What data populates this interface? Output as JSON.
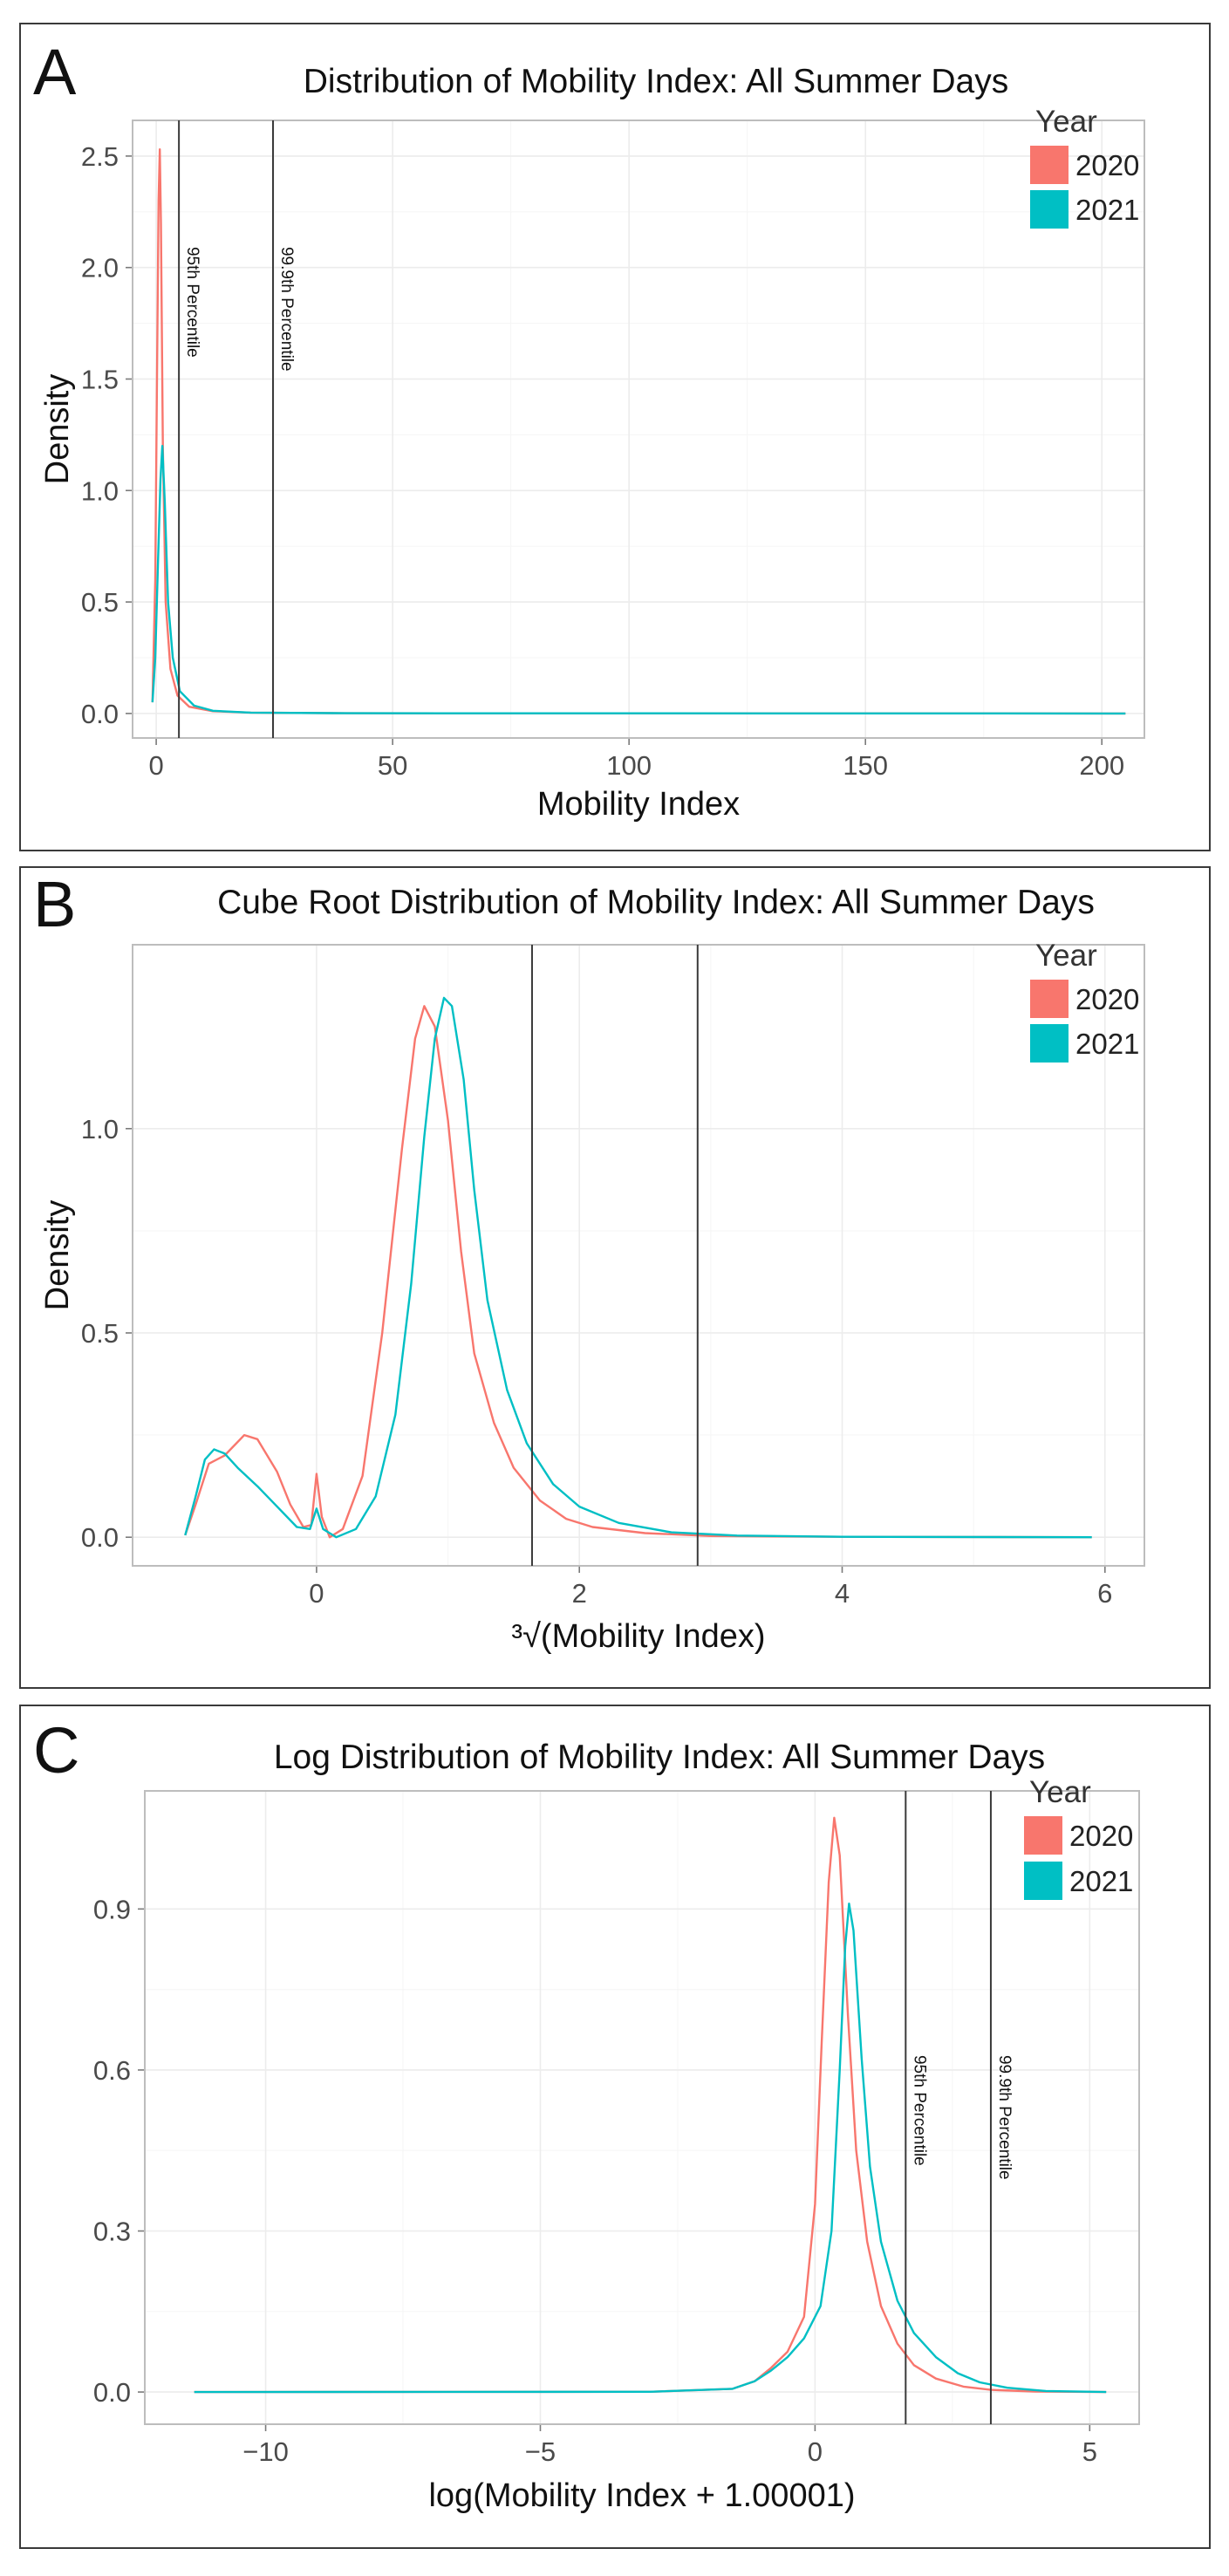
{
  "panels": [
    {
      "letter": "A"
    },
    {
      "letter": "B"
    },
    {
      "letter": "C"
    }
  ],
  "chart_data": [
    {
      "type": "line",
      "title": "Distribution of Mobility Index: All Summer Days",
      "xlabel": "Mobility Index",
      "ylabel": "Density",
      "xlim": [
        -5,
        209
      ],
      "ylim": [
        -0.11,
        2.66
      ],
      "xticks": [
        0,
        50,
        100,
        150,
        200
      ],
      "xtick_labels": [
        "0",
        "50",
        "100",
        "150",
        "200"
      ],
      "yticks": [
        0,
        0.5,
        1.0,
        1.5,
        2.0,
        2.5
      ],
      "ytick_labels": [
        "0.0",
        "0.5",
        "1.0",
        "1.5",
        "2.0",
        "2.5"
      ],
      "grid": true,
      "legend": {
        "title": "Year",
        "placement": "top-right"
      },
      "colors": {
        "2020": "#F8766D",
        "2021": "#00BFC4"
      },
      "vlines": [
        {
          "x": 4.8,
          "label": "95th Percentile"
        },
        {
          "x": 24.7,
          "label": "99.9th Percentile"
        }
      ],
      "series": [
        {
          "name": "2020",
          "points": [
            [
              -0.8,
              0.05
            ],
            [
              -0.2,
              0.6
            ],
            [
              0.2,
              1.6
            ],
            [
              0.5,
              2.3
            ],
            [
              0.75,
              2.53
            ],
            [
              1.0,
              2.2
            ],
            [
              1.4,
              1.2
            ],
            [
              2.0,
              0.5
            ],
            [
              3.0,
              0.2
            ],
            [
              4.5,
              0.08
            ],
            [
              7,
              0.03
            ],
            [
              12,
              0.01
            ],
            [
              20,
              0.004
            ],
            [
              40,
              0.001
            ],
            [
              205,
              0
            ]
          ]
        },
        {
          "name": "2021",
          "points": [
            [
              -0.8,
              0.05
            ],
            [
              -0.2,
              0.25
            ],
            [
              0.4,
              0.7
            ],
            [
              0.9,
              1.05
            ],
            [
              1.3,
              1.2
            ],
            [
              1.8,
              0.95
            ],
            [
              2.5,
              0.5
            ],
            [
              3.5,
              0.25
            ],
            [
              5,
              0.1
            ],
            [
              8,
              0.035
            ],
            [
              12,
              0.012
            ],
            [
              20,
              0.004
            ],
            [
              40,
              0.001
            ],
            [
              205,
              0
            ]
          ]
        }
      ]
    },
    {
      "type": "line",
      "title": "Cube Root Distribution of Mobility Index: All Summer Days",
      "xlabel": "³√(Mobility Index)",
      "ylabel": "Density",
      "xlim": [
        -1.4,
        6.3
      ],
      "ylim": [
        -0.07,
        1.45
      ],
      "xticks": [
        0,
        2,
        4,
        6
      ],
      "xtick_labels": [
        "0",
        "2",
        "4",
        "6"
      ],
      "yticks": [
        0,
        0.5,
        1.0
      ],
      "ytick_labels": [
        "0.0",
        "0.5",
        "1.0"
      ],
      "grid": true,
      "legend": {
        "title": "Year",
        "placement": "top-right"
      },
      "colors": {
        "2020": "#F8766D",
        "2021": "#00BFC4"
      },
      "vlines": [
        {
          "x": 1.64,
          "label": ""
        },
        {
          "x": 2.9,
          "label": ""
        }
      ],
      "series": [
        {
          "name": "2020",
          "points": [
            [
              -1.0,
              0.005
            ],
            [
              -0.92,
              0.08
            ],
            [
              -0.82,
              0.18
            ],
            [
              -0.7,
              0.2
            ],
            [
              -0.55,
              0.25
            ],
            [
              -0.45,
              0.24
            ],
            [
              -0.3,
              0.16
            ],
            [
              -0.2,
              0.08
            ],
            [
              -0.1,
              0.025
            ],
            [
              -0.04,
              0.03
            ],
            [
              0.0,
              0.155
            ],
            [
              0.04,
              0.05
            ],
            [
              0.1,
              0.0
            ],
            [
              0.2,
              0.02
            ],
            [
              0.35,
              0.15
            ],
            [
              0.5,
              0.5
            ],
            [
              0.65,
              0.95
            ],
            [
              0.75,
              1.22
            ],
            [
              0.82,
              1.3
            ],
            [
              0.9,
              1.25
            ],
            [
              1.0,
              1.02
            ],
            [
              1.1,
              0.7
            ],
            [
              1.2,
              0.45
            ],
            [
              1.35,
              0.28
            ],
            [
              1.5,
              0.17
            ],
            [
              1.7,
              0.09
            ],
            [
              1.9,
              0.045
            ],
            [
              2.1,
              0.025
            ],
            [
              2.5,
              0.01
            ],
            [
              3.0,
              0.003
            ],
            [
              4.0,
              0.001
            ],
            [
              5.9,
              0
            ]
          ]
        },
        {
          "name": "2021",
          "points": [
            [
              -1.0,
              0.005
            ],
            [
              -0.92,
              0.1
            ],
            [
              -0.85,
              0.19
            ],
            [
              -0.78,
              0.215
            ],
            [
              -0.7,
              0.205
            ],
            [
              -0.6,
              0.17
            ],
            [
              -0.45,
              0.125
            ],
            [
              -0.3,
              0.075
            ],
            [
              -0.15,
              0.025
            ],
            [
              -0.05,
              0.02
            ],
            [
              0.0,
              0.07
            ],
            [
              0.05,
              0.02
            ],
            [
              0.15,
              0.0
            ],
            [
              0.3,
              0.02
            ],
            [
              0.45,
              0.1
            ],
            [
              0.6,
              0.3
            ],
            [
              0.72,
              0.62
            ],
            [
              0.82,
              0.98
            ],
            [
              0.9,
              1.22
            ],
            [
              0.97,
              1.32
            ],
            [
              1.03,
              1.3
            ],
            [
              1.12,
              1.12
            ],
            [
              1.2,
              0.85
            ],
            [
              1.3,
              0.58
            ],
            [
              1.45,
              0.36
            ],
            [
              1.6,
              0.23
            ],
            [
              1.8,
              0.13
            ],
            [
              2.0,
              0.075
            ],
            [
              2.3,
              0.035
            ],
            [
              2.7,
              0.012
            ],
            [
              3.2,
              0.004
            ],
            [
              4.0,
              0.001
            ],
            [
              5.9,
              0
            ]
          ]
        }
      ]
    },
    {
      "type": "line",
      "title": "Log Distribution of Mobility Index: All Summer Days",
      "xlabel": "log(Mobility Index + 1.00001)",
      "ylabel": "",
      "xlim": [
        -12.2,
        5.9
      ],
      "ylim": [
        -0.06,
        1.12
      ],
      "xticks": [
        -10,
        -5,
        0,
        5
      ],
      "xtick_labels": [
        "−10",
        "−5",
        "0",
        "5"
      ],
      "yticks": [
        0,
        0.3,
        0.6,
        0.9
      ],
      "ytick_labels": [
        "0.0",
        "0.3",
        "0.6",
        "0.9"
      ],
      "grid": true,
      "legend": {
        "title": "Year",
        "placement": "top-right"
      },
      "colors": {
        "2020": "#F8766D",
        "2021": "#00BFC4"
      },
      "vlines": [
        {
          "x": 1.65,
          "label": "95th Percentile"
        },
        {
          "x": 3.2,
          "label": "99.9th Percentile"
        }
      ],
      "series": [
        {
          "name": "2020",
          "points": [
            [
              -11.3,
              0
            ],
            [
              -3,
              0.0005
            ],
            [
              -1.5,
              0.006
            ],
            [
              -1.1,
              0.02
            ],
            [
              -0.8,
              0.045
            ],
            [
              -0.5,
              0.075
            ],
            [
              -0.2,
              0.14
            ],
            [
              0.0,
              0.35
            ],
            [
              0.12,
              0.65
            ],
            [
              0.25,
              0.95
            ],
            [
              0.35,
              1.07
            ],
            [
              0.45,
              1.0
            ],
            [
              0.6,
              0.7
            ],
            [
              0.75,
              0.45
            ],
            [
              0.95,
              0.28
            ],
            [
              1.2,
              0.16
            ],
            [
              1.5,
              0.09
            ],
            [
              1.8,
              0.05
            ],
            [
              2.2,
              0.025
            ],
            [
              2.7,
              0.01
            ],
            [
              3.2,
              0.004
            ],
            [
              4,
              0.001
            ],
            [
              5.3,
              0
            ]
          ]
        },
        {
          "name": "2021",
          "points": [
            [
              -11.3,
              0
            ],
            [
              -3,
              0.0005
            ],
            [
              -1.5,
              0.006
            ],
            [
              -1.1,
              0.02
            ],
            [
              -0.8,
              0.04
            ],
            [
              -0.5,
              0.065
            ],
            [
              -0.2,
              0.1
            ],
            [
              0.1,
              0.16
            ],
            [
              0.3,
              0.3
            ],
            [
              0.45,
              0.6
            ],
            [
              0.55,
              0.83
            ],
            [
              0.62,
              0.91
            ],
            [
              0.7,
              0.86
            ],
            [
              0.85,
              0.62
            ],
            [
              1.0,
              0.42
            ],
            [
              1.2,
              0.28
            ],
            [
              1.5,
              0.17
            ],
            [
              1.8,
              0.11
            ],
            [
              2.2,
              0.065
            ],
            [
              2.6,
              0.035
            ],
            [
              3.0,
              0.018
            ],
            [
              3.5,
              0.008
            ],
            [
              4.2,
              0.002
            ],
            [
              5.3,
              0
            ]
          ]
        }
      ]
    }
  ]
}
